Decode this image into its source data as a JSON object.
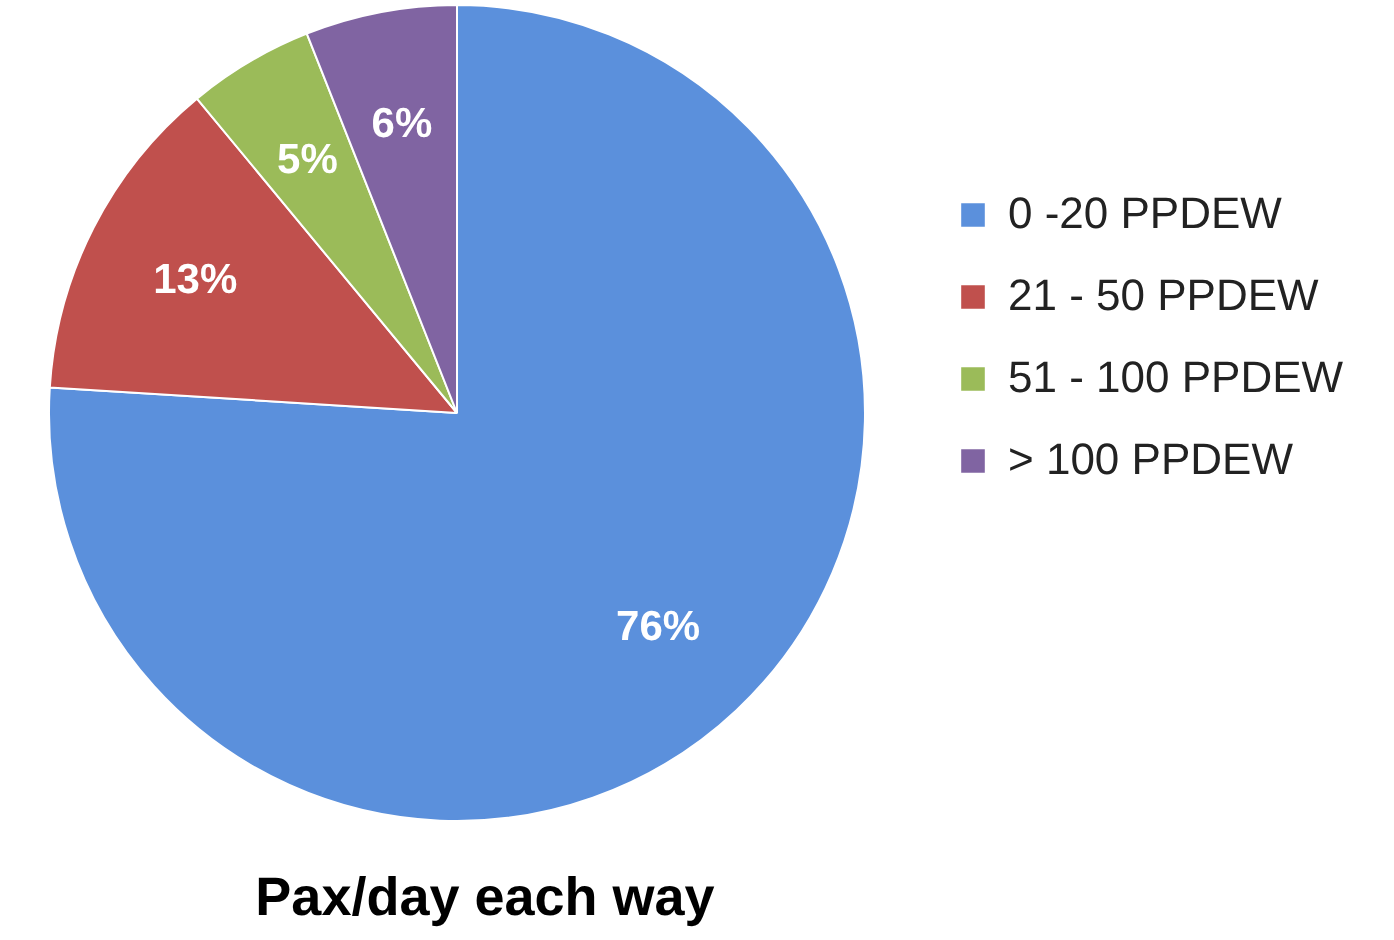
{
  "chart_data": {
    "type": "pie",
    "title": "Pax/day each way",
    "categories": [
      "0 -20 PPDEW",
      "21 - 50 PPDEW",
      "51 - 100 PPDEW",
      "> 100 PPDEW"
    ],
    "values": [
      76,
      13,
      5,
      6
    ],
    "colors": [
      "#5b90dc",
      "#c0504d",
      "#9bbb59",
      "#8064a2"
    ],
    "value_labels": [
      "76%",
      "13%",
      "5%",
      "6%"
    ],
    "legend": "right"
  }
}
